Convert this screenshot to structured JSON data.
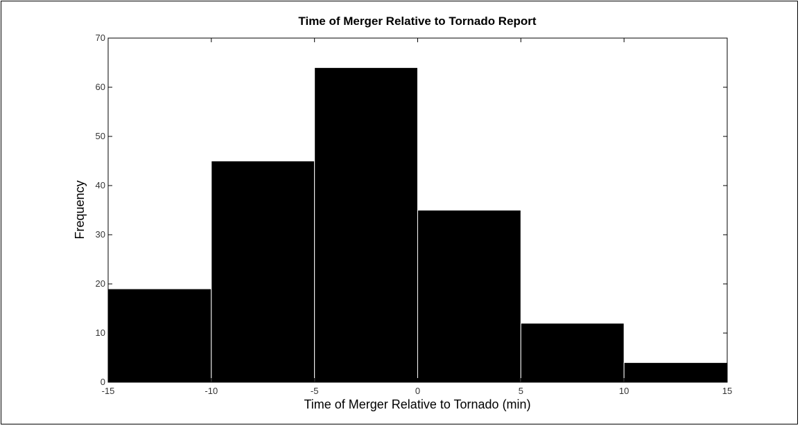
{
  "chart_data": {
    "type": "bar",
    "title": "Time of Merger Relative to Tornado Report",
    "xlabel": "Time of Merger Relative to Tornado (min)",
    "ylabel": "Frequency",
    "bin_edges": [
      -15,
      -10,
      -5,
      0,
      5,
      10,
      15
    ],
    "values": [
      19,
      45,
      64,
      35,
      12,
      4
    ],
    "xlim": [
      -15,
      15
    ],
    "ylim": [
      0,
      70
    ],
    "xticks": [
      "-15",
      "-10",
      "-5",
      "0",
      "5",
      "10",
      "15"
    ],
    "yticks": [
      "0",
      "10",
      "20",
      "30",
      "40",
      "50",
      "60",
      "70"
    ],
    "grid": false,
    "bar_color": "#000000",
    "bar_edge_color": "#ffffff"
  }
}
